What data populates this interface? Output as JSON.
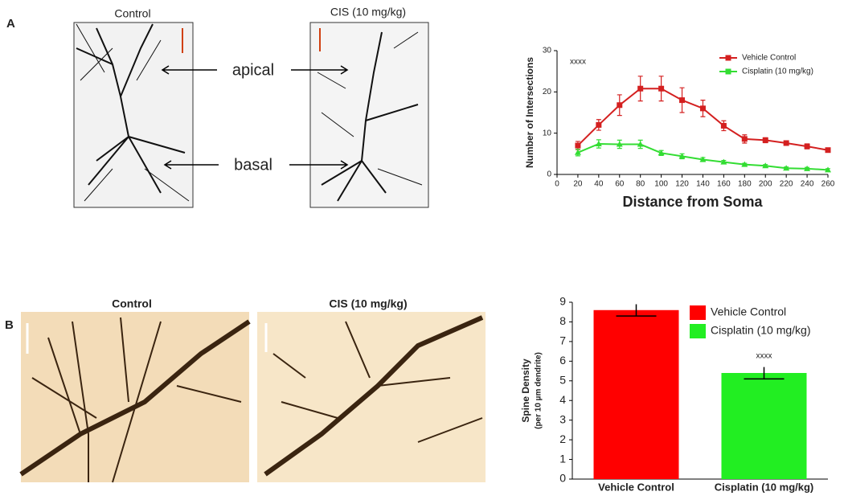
{
  "panels": {
    "a": {
      "label": "A",
      "left_title": "Control",
      "right_title": "CIS (10 mg/kg)",
      "arrow_top": "apical",
      "arrow_bottom": "basal"
    },
    "b": {
      "label": "B",
      "left_title": "Control",
      "right_title": "CIS (10 mg/kg)"
    }
  },
  "chart_data": [
    {
      "type": "line",
      "y_label": "Number of Intersections",
      "x_label": "Distance from Soma",
      "annotation": "xxxx",
      "x": [
        20,
        40,
        60,
        80,
        100,
        120,
        140,
        160,
        180,
        200,
        220,
        240,
        260
      ],
      "series": [
        {
          "name": "Vehicle Control",
          "color": "#d42020",
          "values": [
            7,
            12,
            16.8,
            20.8,
            20.8,
            18,
            16,
            11.8,
            8.6,
            8.3,
            7.6,
            6.8,
            5.9
          ],
          "errors": [
            1,
            1.3,
            2.5,
            3,
            3,
            3,
            2,
            1.2,
            1,
            0.6,
            0.5,
            0.6,
            0.5
          ]
        },
        {
          "name": "Cisplatin (10 mg/kg)",
          "color": "#33dd33",
          "values": [
            5.3,
            7.4,
            7.3,
            7.3,
            5.2,
            4.4,
            3.6,
            3,
            2.4,
            2.1,
            1.5,
            1.4,
            1.1
          ],
          "errors": [
            0.8,
            1,
            1,
            1,
            0.6,
            0.6,
            0.5,
            0.4,
            0.3,
            0.3,
            0.3,
            0.3,
            0.3
          ]
        }
      ],
      "xlim": [
        0,
        260
      ],
      "xticks": [
        0,
        20,
        40,
        60,
        80,
        100,
        120,
        140,
        160,
        180,
        200,
        220,
        240,
        260
      ],
      "ylim": [
        0,
        30
      ],
      "yticks": [
        0,
        10,
        20,
        30
      ]
    },
    {
      "type": "bar",
      "y_label": "Spine Density",
      "y_label_sub": "(per 10 µm dendrite)",
      "annotation": "xxxx",
      "categories": [
        "Vehicle Control",
        "Cisplatin (10 mg/kg)"
      ],
      "values": [
        8.6,
        5.4
      ],
      "errors": [
        0.3,
        0.3
      ],
      "colors": [
        "#ff0000",
        "#22ee22"
      ],
      "ylim": [
        0,
        9
      ],
      "yticks": [
        0,
        1,
        2,
        3,
        4,
        5,
        6,
        7,
        8,
        9
      ]
    }
  ]
}
